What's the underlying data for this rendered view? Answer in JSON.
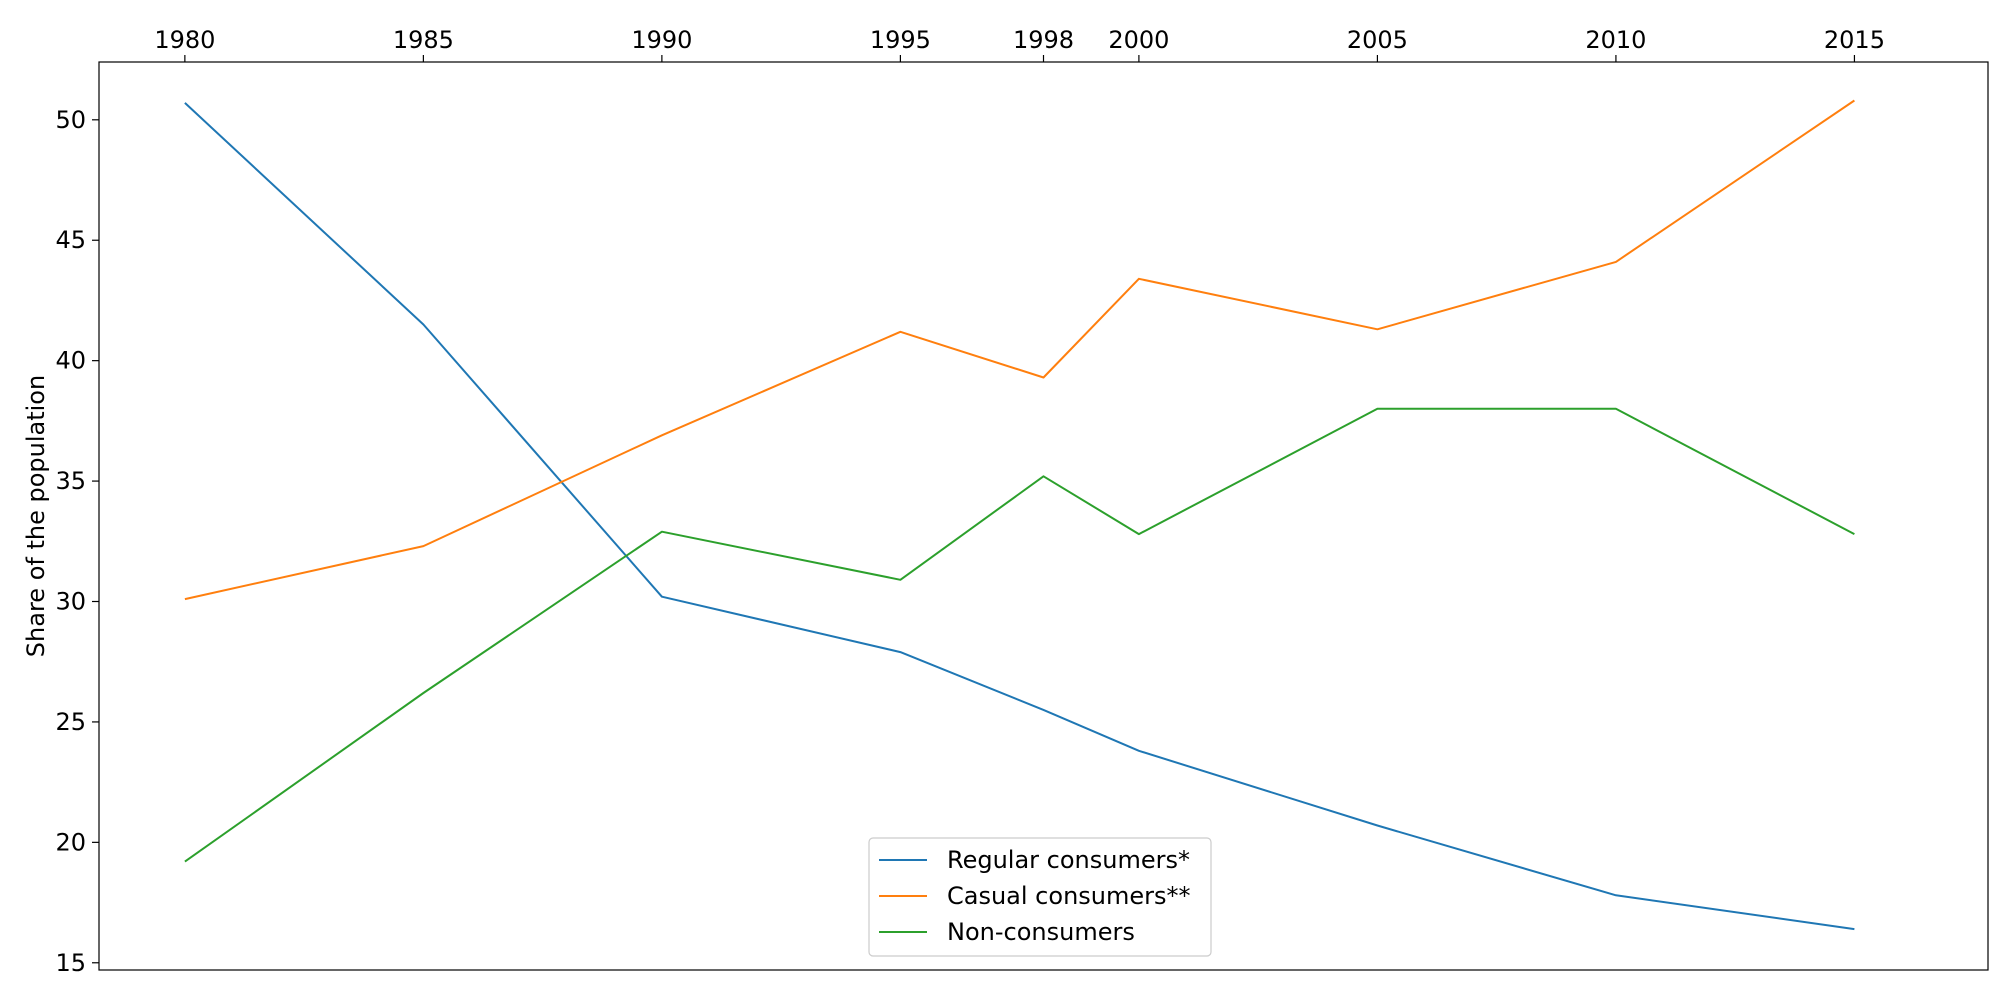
{
  "chart_data": {
    "type": "line",
    "title": "",
    "xlabel": "",
    "ylabel": "Share of the population",
    "x": [
      1980,
      1985,
      1990,
      1995,
      1998,
      2000,
      2005,
      2010,
      2015
    ],
    "x_tick_labels": [
      "1980",
      "1985",
      "1990",
      "1995",
      "1998",
      "2000",
      "2005",
      "2010",
      "2015"
    ],
    "x_axis_position": "top",
    "xlim": [
      1978.2,
      2017.8
    ],
    "ylim": [
      14.7,
      52.4
    ],
    "y_ticks": [
      15,
      20,
      25,
      30,
      35,
      40,
      45,
      50
    ],
    "grid": false,
    "legend_position": "lower center",
    "series": [
      {
        "name": "Regular consumers*",
        "color": "#1f77b4",
        "values": [
          50.7,
          41.5,
          30.2,
          27.9,
          25.5,
          23.8,
          20.7,
          17.8,
          16.4
        ]
      },
      {
        "name": "Casual consumers**",
        "color": "#ff7f0e",
        "values": [
          30.1,
          32.3,
          36.9,
          41.2,
          39.3,
          43.4,
          41.3,
          44.1,
          50.8
        ]
      },
      {
        "name": "Non-consumers",
        "color": "#2ca02c",
        "values": [
          19.2,
          26.2,
          32.9,
          30.9,
          35.2,
          32.8,
          38.0,
          38.0,
          32.8
        ]
      }
    ]
  }
}
